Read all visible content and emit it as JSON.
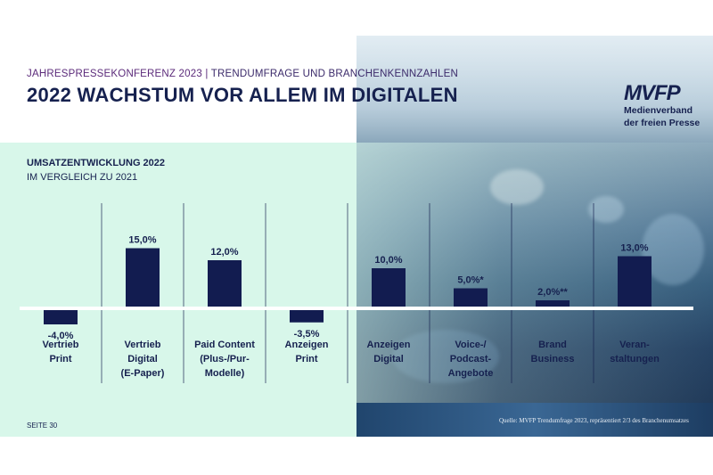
{
  "header": {
    "tagline_left": "JAHRESPRESSEKONFERENZ 2023",
    "tagline_sep": "|",
    "tagline_right": "TRENDUMFRAGE UND BRANCHENKENNZAHLEN",
    "title": "2022 WACHSTUM VOR ALLEM IM DIGITALEN"
  },
  "logo": {
    "mark": "MVFP",
    "line1": "Medienverband",
    "line2": "der freien Presse"
  },
  "footer": {
    "page": "SEITE 30",
    "source": "Quelle: MVFP Trendumfrage 2023, repräsentiert 2/3 des Branchenumsatzes"
  },
  "colors": {
    "bar": "#121c50",
    "text": "#16214f",
    "accent": "#5b2a7a"
  },
  "chart_data": {
    "type": "bar",
    "title": "UMSATZENTWICKLUNG 2022",
    "subtitle": "IM VERGLEICH ZU 2021",
    "categories": [
      [
        "Vertrieb",
        "Print"
      ],
      [
        "Vertrieb",
        "Digital",
        "(E-Paper)"
      ],
      [
        "Paid Content",
        "(Plus-/Pur-",
        "Modelle)"
      ],
      [
        "Anzeigen",
        "Print"
      ],
      [
        "Anzeigen",
        "Digital"
      ],
      [
        "Voice-/",
        "Podcast-",
        "Angebote"
      ],
      [
        "Brand",
        "Business"
      ],
      [
        "Veran-",
        "staltungen"
      ]
    ],
    "values": [
      -4.0,
      15.0,
      12.0,
      -3.5,
      10.0,
      5.0,
      2.0,
      13.0
    ],
    "data_labels": [
      "-4,0%",
      "15,0%",
      "12,0%",
      "-3,5%",
      "10,0%",
      "5,0%*",
      "2,0%**",
      "13,0%"
    ],
    "unit": "%",
    "ylim": [
      -5,
      16
    ]
  }
}
